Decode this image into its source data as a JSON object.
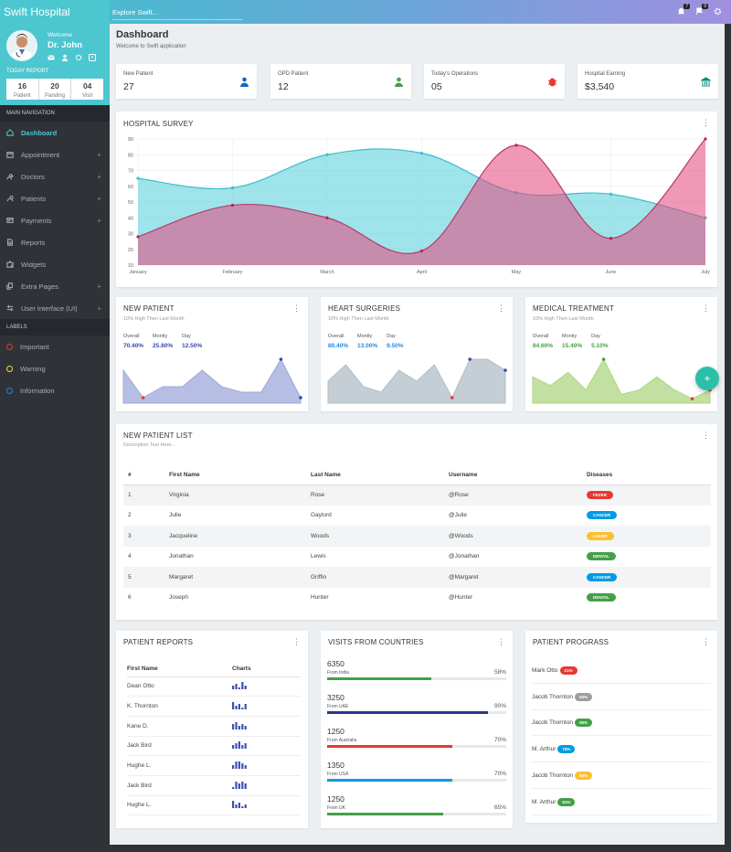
{
  "app": {
    "brand": "Swift Hospital",
    "search_placeholder": "Explore Swift..."
  },
  "topbar": {
    "notifications_count": "7",
    "flags_count": "9"
  },
  "profile": {
    "welcome": "Welcome",
    "name": "Dr. John",
    "today_report_label": "TODAY REPORT",
    "stats": [
      {
        "value": "16",
        "label": "Patient"
      },
      {
        "value": "20",
        "label": "Panding"
      },
      {
        "value": "04",
        "label": "Visit"
      }
    ]
  },
  "sidebar": {
    "main_nav_label": "MAIN NAVIGATION",
    "items": [
      {
        "label": "Dashboard",
        "icon": "home-icon"
      },
      {
        "label": "Appointment",
        "icon": "calendar-icon"
      },
      {
        "label": "Doctors",
        "icon": "user-plus-icon"
      },
      {
        "label": "Patients",
        "icon": "user-icon"
      },
      {
        "label": "Payments",
        "icon": "card-icon"
      },
      {
        "label": "Reports",
        "icon": "file-icon"
      },
      {
        "label": "Widgets",
        "icon": "puzzle-icon"
      },
      {
        "label": "Extra Pages",
        "icon": "copy-icon"
      },
      {
        "label": "User Interface (UI)",
        "icon": "sliders-icon"
      }
    ],
    "labels_label": "LABELS",
    "labels": [
      {
        "label": "Important",
        "color": "#e53935"
      },
      {
        "label": "Warning",
        "color": "#fdd835"
      },
      {
        "label": "Information",
        "color": "#1e88e5"
      }
    ]
  },
  "page": {
    "title": "Dashboard",
    "subtitle": "Welcome to Swift application"
  },
  "kpis": [
    {
      "label": "New Patient",
      "value": "27",
      "color": "#1565c0",
      "icon": "user-icon"
    },
    {
      "label": "OPD Patient",
      "value": "12",
      "color": "#43a047",
      "icon": "user-icon"
    },
    {
      "label": "Today's Operations",
      "value": "05",
      "color": "#e53935",
      "icon": "bug-icon"
    },
    {
      "label": "Hospital Earning",
      "value": "$3,540",
      "color": "#00897b",
      "icon": "bank-icon"
    }
  ],
  "survey": {
    "title": "HOSPITAL SURVEY",
    "chart_data": {
      "type": "area",
      "categories": [
        "January",
        "February",
        "March",
        "April",
        "May",
        "June",
        "July"
      ],
      "yticks": [
        10,
        20,
        30,
        40,
        50,
        60,
        70,
        80,
        90
      ],
      "ylim": [
        10,
        90
      ],
      "series": [
        {
          "values": [
            65,
            59,
            80,
            81,
            56,
            55,
            40
          ],
          "color": "#4ecdd8"
        },
        {
          "values": [
            28,
            48,
            40,
            19,
            86,
            27,
            90
          ],
          "color": "#e8437c"
        }
      ]
    }
  },
  "mini_cards": [
    {
      "title": "NEW PATIENT",
      "subtitle": "10% High Then Last Month",
      "stats": [
        {
          "label": "Overall",
          "value": "70.40%"
        },
        {
          "label": "Montly",
          "value": "25.80%"
        },
        {
          "label": "Day",
          "value": "12.50%"
        }
      ],
      "stat_color": "#3949ab",
      "chart_data": {
        "type": "area",
        "values": [
          6,
          1,
          3,
          3,
          6,
          3,
          2,
          2,
          8,
          1
        ],
        "color": "#9fa8da",
        "low_index": 1,
        "high_index": 8,
        "end_index": 9
      }
    },
    {
      "title": "HEART SURGERIES",
      "subtitle": "10% High Then Last Month",
      "stats": [
        {
          "label": "Overall",
          "value": "80.40%"
        },
        {
          "label": "Montly",
          "value": "13.00%"
        },
        {
          "label": "Day",
          "value": "9.50%"
        }
      ],
      "stat_color": "#1e88e5",
      "chart_data": {
        "type": "area",
        "values": [
          4,
          7,
          3,
          2,
          6,
          4,
          7,
          1,
          8,
          8,
          6
        ],
        "color": "#b0bec5",
        "low_index": 7,
        "high_index": 8,
        "end_index": 10
      }
    },
    {
      "title": "MEDICAL TREATMENT",
      "subtitle": "10% High Then Last Month",
      "stats": [
        {
          "label": "Overall",
          "value": "84.60%"
        },
        {
          "label": "Montly",
          "value": "15.40%"
        },
        {
          "label": "Day",
          "value": "5.10%"
        }
      ],
      "stat_color": "#43a047",
      "chart_data": {
        "type": "area",
        "values": [
          6,
          4,
          7,
          3,
          10,
          2,
          3,
          6,
          3,
          1,
          3
        ],
        "color": "#aed581",
        "low_index": 9,
        "high_index": 4,
        "end_index": 10
      }
    }
  ],
  "patient_list": {
    "title": "NEW PATIENT LIST",
    "subtitle": "Description Text Here...",
    "columns": [
      "#",
      "First Name",
      "Last Name",
      "Username",
      "Diseases"
    ],
    "rows": [
      {
        "num": "1",
        "first": "Virginia",
        "last": "Rose",
        "username": "@Rose",
        "disease": "FEVER",
        "color": "#e53935"
      },
      {
        "num": "2",
        "first": "Julie",
        "last": "Gaylord",
        "username": "@Julie",
        "disease": "CANCER",
        "color": "#039be5"
      },
      {
        "num": "3",
        "first": "Jacqueline",
        "last": "Woods",
        "username": "@Woods",
        "disease": "LAKER",
        "color": "#fbc02d"
      },
      {
        "num": "4",
        "first": "Jonathan",
        "last": "Lewis",
        "username": "@Jonathan",
        "disease": "DENTAL",
        "color": "#43a047"
      },
      {
        "num": "5",
        "first": "Margaret",
        "last": "Griffin",
        "username": "@Margaret",
        "disease": "CANCER",
        "color": "#039be5"
      },
      {
        "num": "6",
        "first": "Joseph",
        "last": "Hunter",
        "username": "@Hunter",
        "disease": "DENTAL",
        "color": "#43a047"
      }
    ]
  },
  "patient_reports": {
    "title": "PATIENT REPORTS",
    "columns": [
      "First Name",
      "Charts"
    ],
    "rows": [
      {
        "name": "Dean Otto",
        "bars": [
          2,
          3,
          1,
          4,
          2
        ]
      },
      {
        "name": "K. Thornton",
        "bars": [
          4,
          2,
          3,
          1,
          3
        ]
      },
      {
        "name": "Kane D.",
        "bars": [
          3,
          4,
          2,
          3,
          2
        ]
      },
      {
        "name": "Jack Bird",
        "bars": [
          2,
          3,
          4,
          2,
          3
        ]
      },
      {
        "name": "Hughe L.",
        "bars": [
          2,
          4,
          4,
          3,
          2
        ]
      },
      {
        "name": "Jack Bird",
        "bars": [
          1,
          4,
          3,
          4,
          3
        ]
      },
      {
        "name": "Hughe L.",
        "bars": [
          4,
          2,
          3,
          1,
          2
        ]
      }
    ]
  },
  "visits": {
    "title": "VISITS FROM COUNTRIES",
    "rows": [
      {
        "count": "6350",
        "from": "From India",
        "percent": "58%",
        "value": 58,
        "color": "#43a047"
      },
      {
        "count": "3250",
        "from": "From UAE",
        "percent": "90%",
        "value": 90,
        "color": "#283593"
      },
      {
        "count": "1250",
        "from": "From Australia",
        "percent": "70%",
        "value": 70,
        "color": "#e53935"
      },
      {
        "count": "1350",
        "from": "From USA",
        "percent": "70%",
        "value": 70,
        "color": "#039be5"
      },
      {
        "count": "1250",
        "from": "From UK",
        "percent": "65%",
        "value": 65,
        "color": "#43a047"
      }
    ]
  },
  "progress": {
    "title": "PATIENT PROGRASS",
    "rows": [
      {
        "name": "Mark Otto",
        "value": "21%",
        "color": "#e53935"
      },
      {
        "name": "Jacob Thornton",
        "value": "50%",
        "color": "#9e9e9e"
      },
      {
        "name": "Jacob Thornton",
        "value": "90%",
        "color": "#43a047"
      },
      {
        "name": "M. Arthur",
        "value": "75%",
        "color": "#039be5"
      },
      {
        "name": "Jacob Thornton",
        "value": "60%",
        "color": "#fbc02d"
      },
      {
        "name": "M. Arthur",
        "value": "91%",
        "color": "#43a047"
      }
    ]
  },
  "fab": {
    "label": "+"
  }
}
